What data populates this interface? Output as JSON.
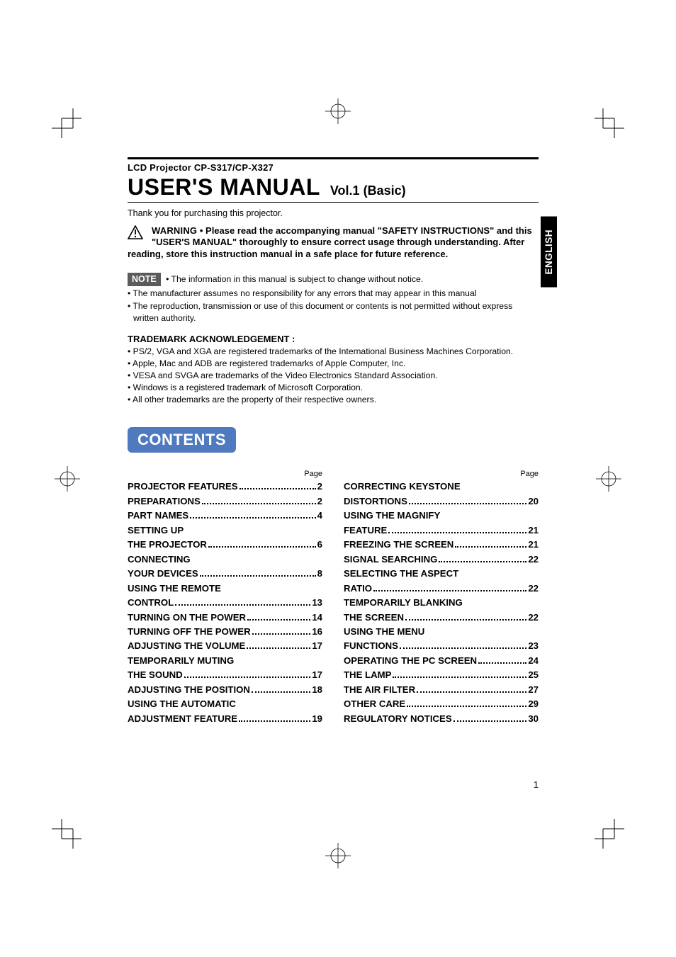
{
  "colors": {
    "text": "#000000",
    "background": "#ffffff",
    "contents_badge_bg": "#4f7abf",
    "contents_badge_fg": "#ffffff",
    "note_label_bg": "#5b5b5b",
    "note_label_fg": "#ffffff",
    "lang_tab_bg": "#000000",
    "lang_tab_fg": "#ffffff"
  },
  "header": {
    "model": "LCD Projector CP-S317/CP-X327",
    "title_main": "USER'S MANUAL",
    "title_sub": "Vol.1 (Basic)"
  },
  "thanks": "Thank you for purchasing this projector.",
  "warning": {
    "label": "WARNING",
    "text": "• Please read the accompanying manual \"SAFETY INSTRUCTIONS\" and this \"USER'S MANUAL\" thoroughly to ensure correct usage through understanding. After reading, store this instruction manual in a safe place for future reference."
  },
  "note": {
    "label": "NOTE",
    "first": "• The information in this manual is subject to change without notice.",
    "items": [
      "• The manufacturer assumes no responsibility for any errors that may appear in this manual",
      "• The reproduction, transmission or use of this document or contents is not permitted without express written authority."
    ]
  },
  "trademark": {
    "heading": "TRADEMARK ACKNOWLEDGEMENT :",
    "items": [
      "• PS/2, VGA and XGA are registered trademarks of the International Business Machines Corporation.",
      "• Apple, Mac and ADB are registered trademarks of Apple Computer, Inc.",
      "• VESA and SVGA are trademarks of the Video Electronics Standard Association.",
      "• Windows is a registered trademark of Microsoft Corporation.",
      "• All other trademarks are the property of their respective owners."
    ]
  },
  "contents_label": "CONTENTS",
  "toc_page_label": "Page",
  "toc_left": [
    {
      "label": "PROJECTOR FEATURES",
      "page": "2"
    },
    {
      "label": "PREPARATIONS",
      "page": "2"
    },
    {
      "label": "PART NAMES",
      "page": "4"
    },
    {
      "label": "SETTING UP\nTHE PROJECTOR",
      "page": "6"
    },
    {
      "label": "CONNECTING\nYOUR DEVICES",
      "page": "8"
    },
    {
      "label": "USING THE REMOTE\nCONTROL",
      "page": "13"
    },
    {
      "label": "TURNING ON THE POWER",
      "page": "14"
    },
    {
      "label": "TURNING OFF THE POWER",
      "page": "16"
    },
    {
      "label": "ADJUSTING THE VOLUME",
      "page": "17"
    },
    {
      "label": "TEMPORARILY MUTING\nTHE SOUND",
      "page": "17"
    },
    {
      "label": "ADJUSTING THE POSITION",
      "page": "18"
    },
    {
      "label": "USING THE AUTOMATIC\nADJUSTMENT FEATURE",
      "page": "19"
    }
  ],
  "toc_right": [
    {
      "label": "CORRECTING KEYSTONE\nDISTORTIONS",
      "page": "20"
    },
    {
      "label": "USING THE MAGNIFY\nFEATURE",
      "page": "21"
    },
    {
      "label": "FREEZING THE SCREEN",
      "page": "21"
    },
    {
      "label": "SIGNAL SEARCHING",
      "page": "22"
    },
    {
      "label": "SELECTING THE ASPECT\nRATIO",
      "page": "22"
    },
    {
      "label": "TEMPORARILY BLANKING\nTHE SCREEN",
      "page": "22"
    },
    {
      "label": "USING THE MENU\nFUNCTIONS",
      "page": "23"
    },
    {
      "label": "OPERATING THE PC SCREEN",
      "page": "24"
    },
    {
      "label": "THE LAMP",
      "page": "25"
    },
    {
      "label": "THE AIR FILTER",
      "page": "27"
    },
    {
      "label": "OTHER CARE",
      "page": "29"
    },
    {
      "label": "REGULATORY NOTICES",
      "page": "30"
    }
  ],
  "language_tab": "ENGLISH",
  "page_number": "1"
}
